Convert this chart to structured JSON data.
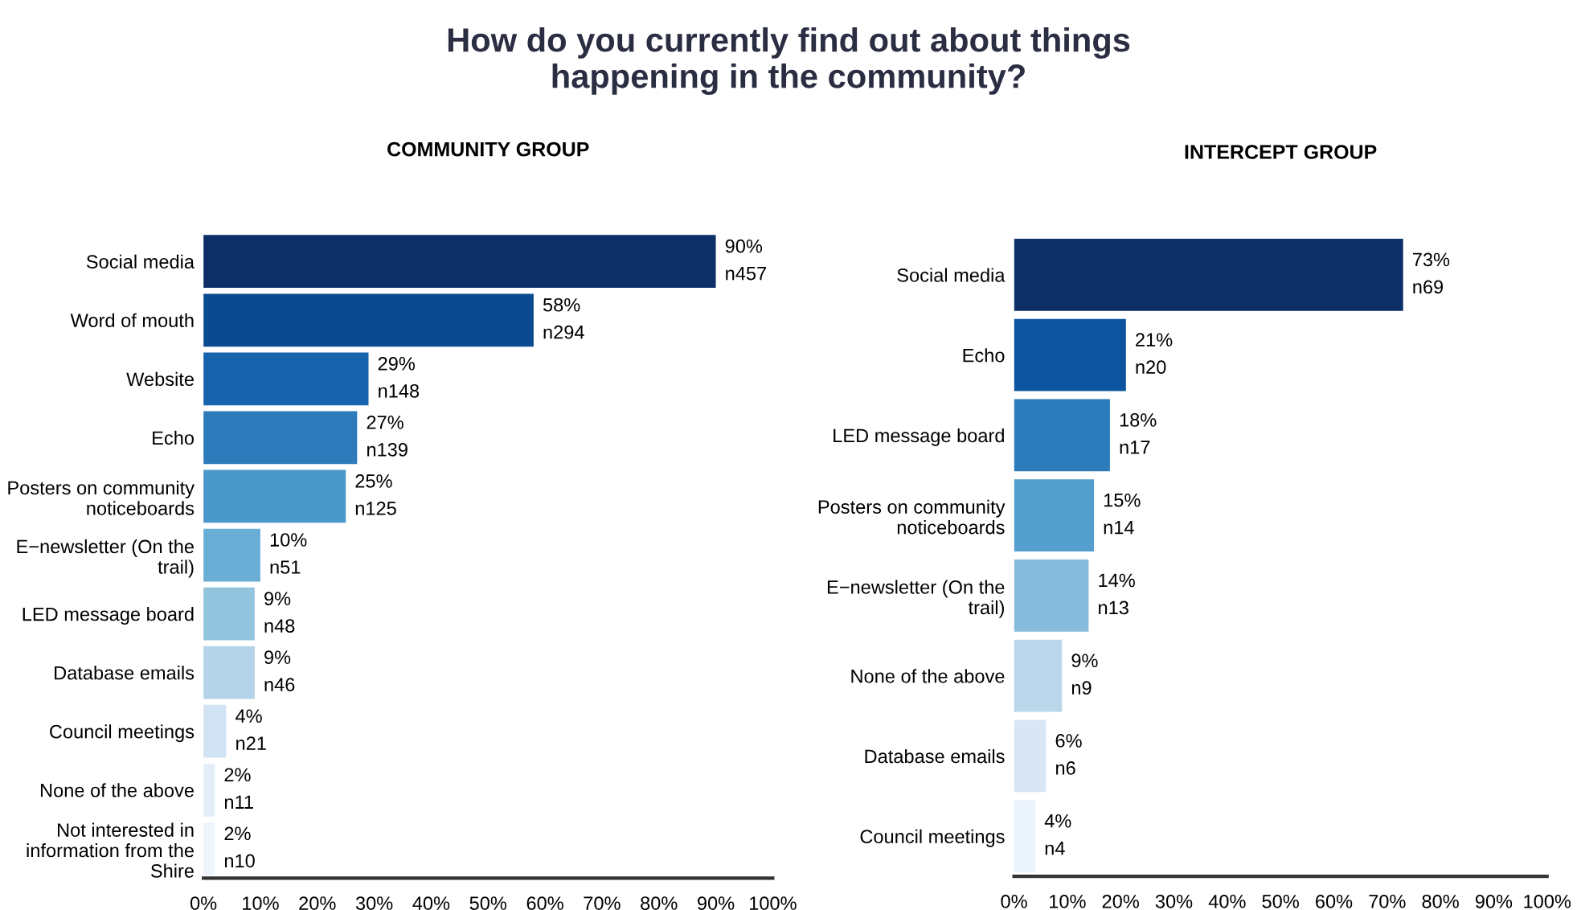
{
  "chart_data": [
    {
      "type": "bar",
      "orientation": "horizontal",
      "title": "COMMUNITY GROUP",
      "annotations": [
        "How do you currently find out about things\nhappening in the community?"
      ],
      "categories": [
        "Social media",
        "Word of mouth",
        "Website",
        "Echo",
        "Posters on community\nnoticeboards",
        "E−newsletter (On the\ntrail)",
        "LED message board",
        "Database emails",
        "Council meetings",
        "None of the above",
        "Not interested in\ninformation from the\nShire"
      ],
      "values": [
        90,
        58,
        29,
        27,
        25,
        10,
        9,
        9,
        4,
        2,
        2
      ],
      "value_labels": [
        "90%\nn457",
        "58%\nn294",
        "29%\nn148",
        "27%\nn139",
        "25%\nn125",
        "10%\nn51",
        "9%\nn48",
        "9%\nn46",
        "4%\nn21",
        "2%\nn11",
        "2%\nn10"
      ],
      "colors": [
        "#0b2f66",
        "#0b4a90",
        "#1763ad",
        "#2d7bba",
        "#4a97c9",
        "#6aaed6",
        "#92c4de",
        "#b6d4e9",
        "#d2e3f3",
        "#e3eef9",
        "#eef5fc"
      ],
      "xlim": [
        0,
        100
      ],
      "xticks": [
        {
          "value": 0,
          "label": "0%"
        },
        {
          "value": 10,
          "label": "10%"
        },
        {
          "value": 20,
          "label": "20%"
        },
        {
          "value": 30,
          "label": "30%"
        },
        {
          "value": 40,
          "label": "40%"
        },
        {
          "value": 50,
          "label": "50%"
        },
        {
          "value": 60,
          "label": "60%"
        },
        {
          "value": 70,
          "label": "70%"
        },
        {
          "value": 80,
          "label": "80%"
        },
        {
          "value": 90,
          "label": "90%"
        },
        {
          "value": 100,
          "label": "100%"
        }
      ],
      "grid": false,
      "legend": false
    },
    {
      "type": "bar",
      "orientation": "horizontal",
      "title": "INTERCEPT GROUP",
      "categories": [
        "Social media",
        "Echo",
        "LED message board",
        "Posters on community\nnoticeboards",
        "E−newsletter (On the\ntrail)",
        "None of the above",
        "Database emails",
        "Council meetings"
      ],
      "values": [
        73,
        21,
        18,
        15,
        14,
        9,
        6,
        4
      ],
      "value_labels": [
        "73%\nn69",
        "21%\nn20",
        "18%\nn17",
        "15%\nn14",
        "14%\nn13",
        "9%\nn9",
        "6%\nn6",
        "4%\nn4"
      ],
      "colors": [
        "#0b2f66",
        "#0c54a0",
        "#2c7bba",
        "#559fce",
        "#86bbdb",
        "#b9d6eb",
        "#d8e6f5",
        "#ebf3fc"
      ],
      "xlim": [
        0,
        100
      ],
      "xticks": [
        {
          "value": 0,
          "label": "0%"
        },
        {
          "value": 10,
          "label": "10%"
        },
        {
          "value": 20,
          "label": "20%"
        },
        {
          "value": 30,
          "label": "30%"
        },
        {
          "value": 40,
          "label": "40%"
        },
        {
          "value": 50,
          "label": "50%"
        },
        {
          "value": 60,
          "label": "60%"
        },
        {
          "value": 70,
          "label": "70%"
        },
        {
          "value": 80,
          "label": "80%"
        },
        {
          "value": 90,
          "label": "90%"
        },
        {
          "value": 100,
          "label": "100%"
        }
      ],
      "grid": false,
      "legend": false
    }
  ]
}
